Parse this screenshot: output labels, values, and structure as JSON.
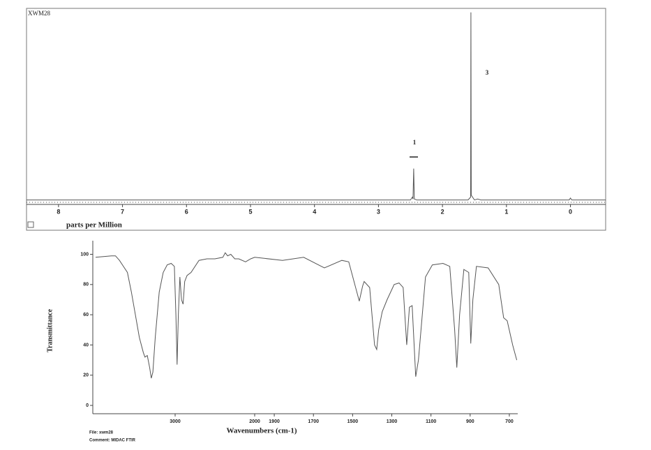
{
  "chart_data": [
    {
      "type": "line",
      "title": "XWM28",
      "xlabel": "parts per Million",
      "x": [
        8.5,
        7.0,
        5.5,
        4.0,
        3.0,
        2.5,
        2.47,
        2.46,
        2.45,
        2.44,
        2.4,
        2.0,
        1.6,
        1.56,
        1.555,
        1.55,
        1.5,
        1.45,
        1.4,
        0.5,
        0.02,
        0.0,
        -0.02,
        -0.55
      ],
      "values": [
        0.5,
        0.5,
        0.5,
        0.5,
        0.5,
        0.5,
        2,
        1,
        17,
        1,
        0.5,
        0.5,
        0.5,
        2,
        99,
        3,
        0.5,
        1,
        0.5,
        0.5,
        0.5,
        1.5,
        0.5,
        0.5
      ],
      "color": "#555555",
      "xlim": [
        8.5,
        -0.55
      ],
      "ylim": [
        0,
        100
      ],
      "xticks": [
        8,
        7,
        6,
        5,
        4,
        3,
        2,
        1,
        0
      ],
      "annotations": [
        "1",
        "3"
      ]
    },
    {
      "type": "line",
      "xlabel": "Wavenumbers (cm-1)",
      "ylabel": "Transmittance",
      "x": [
        4000,
        3900,
        3800,
        3750,
        3700,
        3600,
        3550,
        3500,
        3450,
        3400,
        3380,
        3350,
        3320,
        3300,
        3280,
        3250,
        3200,
        3150,
        3100,
        3050,
        3010,
        2990,
        2975,
        2960,
        2940,
        2920,
        2900,
        2880,
        2850,
        2800,
        2700,
        2600,
        2500,
        2400,
        2370,
        2340,
        2300,
        2250,
        2200,
        2115,
        2050,
        2000,
        1858,
        1750,
        1644,
        1555,
        1520,
        1466,
        1449,
        1441,
        1413,
        1388,
        1377,
        1367,
        1349,
        1324,
        1288,
        1263,
        1242,
        1224,
        1210,
        1196,
        1178,
        1164,
        1128,
        1093,
        1039,
        1004,
        979,
        968,
        954,
        932,
        907,
        897,
        886,
        868,
        808,
        754,
        729,
        711,
        683,
        662
      ],
      "values": [
        98,
        98.5,
        99,
        99,
        96,
        88,
        75,
        60,
        45,
        35,
        32,
        33,
        25,
        18,
        22,
        45,
        75,
        88,
        93,
        94,
        92,
        60,
        27,
        60,
        85,
        70,
        67,
        82,
        86,
        88,
        96,
        97,
        97,
        98,
        101,
        99,
        100,
        97,
        97,
        95,
        97,
        98,
        96,
        98,
        91,
        96,
        95,
        69,
        79,
        82,
        78,
        40,
        37,
        50,
        62,
        70,
        80,
        81,
        78,
        40,
        65,
        66,
        19,
        30,
        85,
        93,
        94,
        92,
        50,
        25,
        60,
        90,
        88,
        41,
        70,
        92,
        91,
        80,
        58,
        56,
        40,
        30
      ],
      "color": "#555555",
      "xlim": [
        4000,
        650
      ],
      "x_scale_break": 2000,
      "ylim": [
        -5.5,
        109
      ],
      "xticks": [
        3000,
        2000,
        1900,
        1700,
        1500,
        1300,
        1100,
        900,
        700
      ],
      "yticks": [
        0,
        20,
        40,
        60,
        80,
        100
      ],
      "footnotes": [
        "File: xwm28",
        "Comment: MIDAC FTIR"
      ]
    }
  ]
}
